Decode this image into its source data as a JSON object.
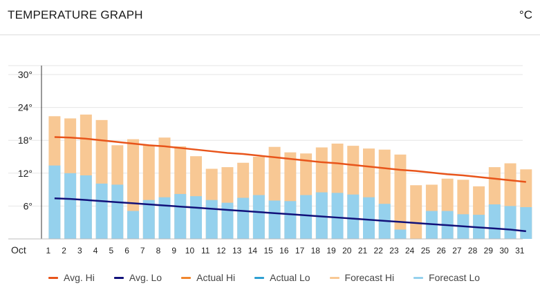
{
  "header": {
    "title": "TEMPERATURE GRAPH",
    "unit": "°C"
  },
  "colors": {
    "avg_hi": "#e8541a",
    "avg_lo": "#11117a",
    "actual_hi": "#f0862e",
    "actual_lo": "#2d9fd2",
    "forecast_hi": "#f8c894",
    "forecast_lo": "#95d1ed"
  },
  "legend": [
    {
      "key": "avg_hi",
      "label": "Avg. Hi"
    },
    {
      "key": "avg_lo",
      "label": "Avg. Lo"
    },
    {
      "key": "actual_hi",
      "label": "Actual Hi"
    },
    {
      "key": "actual_lo",
      "label": "Actual Lo"
    },
    {
      "key": "forecast_hi",
      "label": "Forecast Hi"
    },
    {
      "key": "forecast_lo",
      "label": "Forecast Lo"
    }
  ],
  "chart_data": {
    "type": "bar",
    "month_label": "Oct",
    "categories": [
      "1",
      "2",
      "3",
      "4",
      "5",
      "6",
      "7",
      "8",
      "9",
      "10",
      "11",
      "12",
      "13",
      "14",
      "15",
      "16",
      "17",
      "18",
      "19",
      "20",
      "21",
      "22",
      "23",
      "24",
      "25",
      "26",
      "27",
      "28",
      "29",
      "30",
      "31"
    ],
    "ylim": [
      0,
      30
    ],
    "y_ticks": [
      6,
      12,
      18,
      24,
      30
    ],
    "y_tick_labels": [
      "6°",
      "12°",
      "18°",
      "24°",
      "30°"
    ],
    "grid": true,
    "series": [
      {
        "name": "Forecast Hi",
        "kind": "bar",
        "values": [
          22.4,
          22.0,
          22.7,
          21.7,
          17.1,
          18.2,
          17.1,
          18.5,
          16.9,
          15.1,
          12.8,
          13.1,
          13.9,
          15.0,
          16.8,
          15.8,
          15.6,
          16.7,
          17.4,
          17.0,
          16.5,
          16.3,
          15.4,
          9.8,
          9.9,
          11.0,
          10.8,
          9.6,
          13.1,
          13.8,
          12.7
        ]
      },
      {
        "name": "Forecast Lo",
        "kind": "bar",
        "values": [
          13.4,
          12.0,
          11.6,
          10.1,
          9.9,
          5.1,
          7.1,
          7.6,
          8.2,
          7.8,
          7.1,
          6.6,
          7.5,
          8.0,
          7.0,
          6.9,
          8.0,
          8.5,
          8.4,
          8.1,
          7.6,
          6.4,
          1.7,
          0.0,
          5.1,
          5.1,
          4.5,
          4.4,
          6.3,
          6.0,
          5.8
        ]
      },
      {
        "name": "Avg. Hi",
        "kind": "line",
        "values": [
          18.6,
          18.5,
          18.3,
          18.0,
          17.7,
          17.4,
          17.1,
          16.9,
          16.6,
          16.3,
          16.0,
          15.7,
          15.5,
          15.2,
          14.9,
          14.6,
          14.3,
          14.0,
          13.8,
          13.5,
          13.2,
          12.9,
          12.6,
          12.4,
          12.1,
          11.8,
          11.6,
          11.3,
          11.0,
          10.7,
          10.4
        ]
      },
      {
        "name": "Avg. Lo",
        "kind": "line",
        "values": [
          7.4,
          7.3,
          7.1,
          6.9,
          6.7,
          6.5,
          6.3,
          6.1,
          5.9,
          5.7,
          5.5,
          5.3,
          5.1,
          4.9,
          4.7,
          4.5,
          4.3,
          4.1,
          3.9,
          3.7,
          3.5,
          3.3,
          3.1,
          2.9,
          2.7,
          2.5,
          2.3,
          2.1,
          1.9,
          1.7,
          1.4
        ]
      }
    ]
  }
}
